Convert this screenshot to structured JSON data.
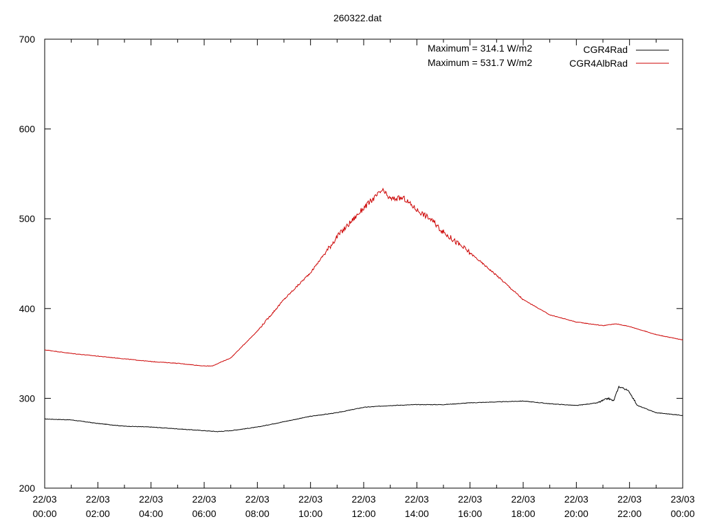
{
  "chart_data": {
    "type": "line",
    "title": "260322.dat",
    "xlabel": "",
    "ylabel": "",
    "xlim_hours": [
      0,
      24
    ],
    "ylim": [
      200,
      700
    ],
    "grid": false,
    "legend_position": "top-right",
    "y_ticks": [
      200,
      300,
      400,
      500,
      600,
      700
    ],
    "x_ticks": [
      {
        "date": "22/03",
        "time": "00:00"
      },
      {
        "date": "22/03",
        "time": "02:00"
      },
      {
        "date": "22/03",
        "time": "04:00"
      },
      {
        "date": "22/03",
        "time": "06:00"
      },
      {
        "date": "22/03",
        "time": "08:00"
      },
      {
        "date": "22/03",
        "time": "10:00"
      },
      {
        "date": "22/03",
        "time": "12:00"
      },
      {
        "date": "22/03",
        "time": "14:00"
      },
      {
        "date": "22/03",
        "time": "16:00"
      },
      {
        "date": "22/03",
        "time": "18:00"
      },
      {
        "date": "22/03",
        "time": "20:00"
      },
      {
        "date": "22/03",
        "time": "22:00"
      },
      {
        "date": "23/03",
        "time": "00:00"
      }
    ],
    "annotations": [
      "Maximum = 314.1 W/m2",
      "Maximum = 531.7 W/m2"
    ],
    "series": [
      {
        "name": "CGR4Rad",
        "color": "#000000",
        "points": [
          [
            0,
            277
          ],
          [
            1,
            276
          ],
          [
            2,
            272
          ],
          [
            3,
            269
          ],
          [
            4,
            268
          ],
          [
            5,
            266
          ],
          [
            6,
            264
          ],
          [
            6.5,
            263
          ],
          [
            7,
            264
          ],
          [
            8,
            268
          ],
          [
            9,
            274
          ],
          [
            10,
            280
          ],
          [
            11,
            284
          ],
          [
            12,
            290
          ],
          [
            13,
            292
          ],
          [
            14,
            293
          ],
          [
            15,
            293
          ],
          [
            16,
            295
          ],
          [
            17,
            296
          ],
          [
            18,
            297
          ],
          [
            19,
            294
          ],
          [
            20,
            292
          ],
          [
            20.8,
            295
          ],
          [
            21.2,
            300
          ],
          [
            21.4,
            297
          ],
          [
            21.6,
            313
          ],
          [
            21.8,
            311
          ],
          [
            22,
            307
          ],
          [
            22.3,
            292
          ],
          [
            23,
            284
          ],
          [
            24,
            281
          ]
        ]
      },
      {
        "name": "CGR4AlbRad",
        "color": "#cc0000",
        "points": [
          [
            0,
            354
          ],
          [
            1,
            350
          ],
          [
            2,
            347
          ],
          [
            3,
            344
          ],
          [
            4,
            341
          ],
          [
            5,
            339
          ],
          [
            6,
            336
          ],
          [
            6.3,
            336
          ],
          [
            7,
            345
          ],
          [
            8,
            375
          ],
          [
            9,
            410
          ],
          [
            10,
            440
          ],
          [
            11,
            480
          ],
          [
            12,
            512
          ],
          [
            12.7,
            531.7
          ],
          [
            13,
            522
          ],
          [
            13.5,
            523
          ],
          [
            14,
            510
          ],
          [
            14.5,
            500
          ],
          [
            15,
            485
          ],
          [
            16,
            462
          ],
          [
            17,
            437
          ],
          [
            18,
            410
          ],
          [
            19,
            393
          ],
          [
            20,
            385
          ],
          [
            21,
            381
          ],
          [
            21.5,
            383
          ],
          [
            22,
            380
          ],
          [
            23,
            371
          ],
          [
            24,
            365
          ]
        ]
      }
    ]
  }
}
